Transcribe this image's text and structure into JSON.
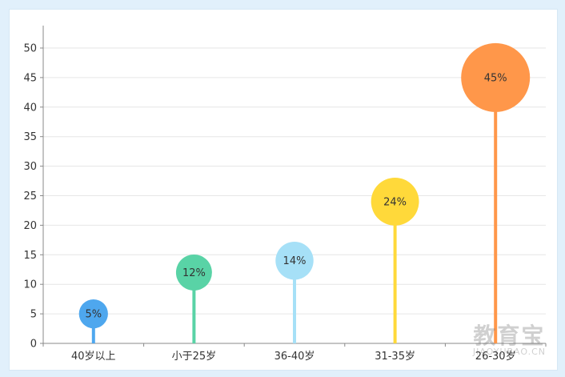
{
  "chart_data": {
    "type": "scatter",
    "categories": [
      "40岁以上",
      "小于25岁",
      "36-40岁",
      "31-35岁",
      "26-30岁"
    ],
    "values": [
      5,
      12,
      14,
      24,
      45
    ],
    "value_labels": [
      "5%",
      "12%",
      "14%",
      "24%",
      "45%"
    ],
    "colors": [
      "#4ea7ee",
      "#59d3a6",
      "#a6e0f7",
      "#ffd93a",
      "#ff974a"
    ],
    "stem_colors": [
      "#4ea7ee",
      "#59d3a6",
      "#a6e0f7",
      "#ffd93a",
      "#ff974a"
    ],
    "ylim": [
      0,
      50
    ],
    "yticks": [
      0,
      5,
      10,
      15,
      20,
      25,
      30,
      35,
      40,
      45,
      50
    ],
    "grid": true,
    "title": "",
    "xlabel": "",
    "ylabel": ""
  },
  "watermark": {
    "main": "教育宝",
    "sub": "JIAOYUBAO.CN"
  }
}
